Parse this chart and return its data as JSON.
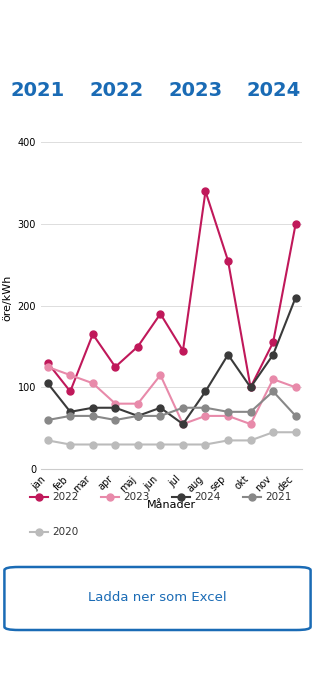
{
  "months": [
    "jan",
    "feb",
    "mar",
    "apr",
    "maj",
    "jun",
    "jul",
    "aug",
    "sep",
    "okt",
    "nov",
    "dec"
  ],
  "series": {
    "2022": {
      "values": [
        130,
        95,
        165,
        125,
        150,
        190,
        145,
        340,
        255,
        100,
        155,
        300
      ],
      "color": "#c0185a",
      "linewidth": 1.5,
      "markersize": 5
    },
    "2023": {
      "values": [
        125,
        115,
        105,
        80,
        80,
        115,
        55,
        65,
        65,
        55,
        110,
        100
      ],
      "color": "#e88aaa",
      "linewidth": 1.5,
      "markersize": 5
    },
    "2024": {
      "values": [
        105,
        70,
        75,
        75,
        65,
        75,
        55,
        95,
        140,
        100,
        140,
        210
      ],
      "color": "#3a3a3a",
      "linewidth": 1.5,
      "markersize": 5
    },
    "2021": {
      "values": [
        60,
        65,
        65,
        60,
        65,
        65,
        75,
        75,
        70,
        70,
        95,
        65
      ],
      "color": "#888888",
      "linewidth": 1.5,
      "markersize": 5
    },
    "2020": {
      "values": [
        35,
        30,
        30,
        30,
        30,
        30,
        30,
        30,
        35,
        35,
        45,
        45
      ],
      "color": "#bbbbbb",
      "linewidth": 1.5,
      "markersize": 5
    }
  },
  "legend_order": [
    "2022",
    "2023",
    "2024",
    "2021",
    "2020"
  ],
  "xlabel": "Månader",
  "ylabel": "öre/kWh",
  "ylim": [
    0,
    420
  ],
  "yticks": [
    0,
    100,
    200,
    300,
    400
  ],
  "bg_color": "#ffffff",
  "plot_bg_color": "#ffffff",
  "grid_color": "#dddddd",
  "button_text": "Ladda ner som Excel",
  "button_color": "#1a6bb5",
  "title_years": [
    "2021",
    "2022",
    "2023",
    "2024"
  ],
  "title_color": "#1a6bb5"
}
